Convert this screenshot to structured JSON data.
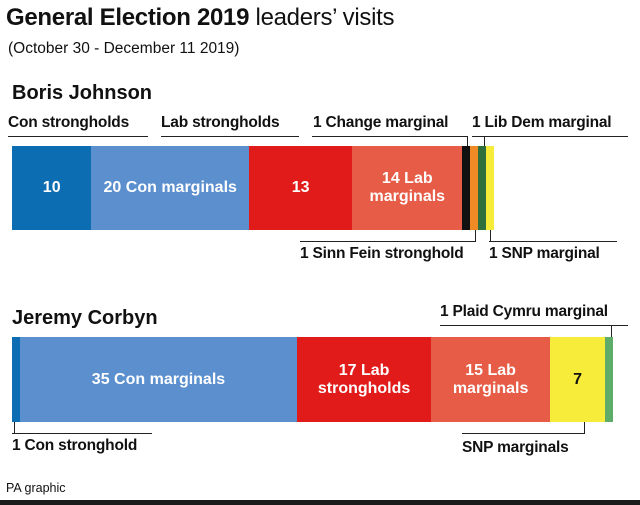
{
  "title_bold": "General Election 2019",
  "title_light": " leaders’ visits",
  "subtitle": "(October 30 - December 11 2019)",
  "source": "PA graphic",
  "colors": {
    "con_stronghold": "#0c6db2",
    "con_marginal": "#5b8fce",
    "lab_stronghold": "#e11a1a",
    "lab_marginal": "#e65c46",
    "change_marginal": "#111111",
    "sinn_fein": "#f08a24",
    "lib_dem": "#f6a22b",
    "snp": "#f7ec3a",
    "plaid": "#5fab6a",
    "green": "#2e6f3c"
  },
  "chart_data": [
    {
      "type": "bar",
      "leader": "Boris Johnson",
      "segments": [
        {
          "category": "Con strongholds",
          "value": 10,
          "label": "10",
          "color": "con_stronghold"
        },
        {
          "category": "Con marginals",
          "value": 20,
          "label": "20 Con marginals",
          "color": "con_marginal"
        },
        {
          "category": "Lab strongholds",
          "value": 13,
          "label": "13",
          "color": "lab_stronghold"
        },
        {
          "category": "Lab marginals",
          "value": 14,
          "label": "14 Lab marginals",
          "color": "lab_marginal"
        },
        {
          "category": "Change marginal",
          "value": 1,
          "label": "",
          "color": "change_marginal"
        },
        {
          "category": "Sinn Fein stronghold",
          "value": 1,
          "label": "",
          "color": "sinn_fein"
        },
        {
          "category": "Lib Dem marginal",
          "value": 1,
          "label": "",
          "color": "green"
        },
        {
          "category": "SNP marginal",
          "value": 1,
          "label": "",
          "color": "snp"
        }
      ],
      "annotations": {
        "con_strongholds": "Con strongholds",
        "lab_strongholds": "Lab strongholds",
        "change": "1 Change marginal",
        "libdem": "1 Lib Dem marginal",
        "sinnfein": "1 Sinn Fein stronghold",
        "snp": "1 SNP marginal"
      }
    },
    {
      "type": "bar",
      "leader": "Jeremy Corbyn",
      "segments": [
        {
          "category": "Con stronghold",
          "value": 1,
          "label": "",
          "color": "con_stronghold"
        },
        {
          "category": "Con marginals",
          "value": 35,
          "label": "35 Con marginals",
          "color": "con_marginal"
        },
        {
          "category": "Lab strongholds",
          "value": 17,
          "label": "17 Lab strongholds",
          "color": "lab_stronghold"
        },
        {
          "category": "Lab marginals",
          "value": 15,
          "label": "15 Lab marginals",
          "color": "lab_marginal"
        },
        {
          "category": "SNP marginals",
          "value": 7,
          "label": "7",
          "color": "snp"
        },
        {
          "category": "Plaid Cymru marginal",
          "value": 1,
          "label": "",
          "color": "plaid"
        }
      ],
      "annotations": {
        "plaid": "1 Plaid Cymru marginal",
        "con": "1 Con stronghold",
        "snp": "SNP marginals"
      }
    }
  ]
}
